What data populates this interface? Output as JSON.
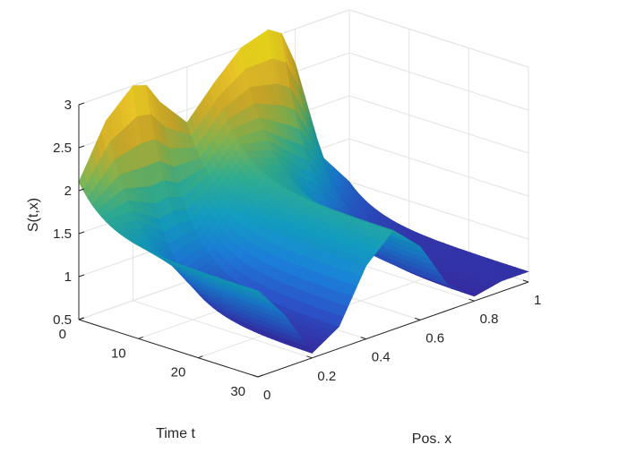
{
  "chart_data": {
    "type": "surface",
    "title": "",
    "xlabel": "Time t",
    "ylabel": "Pos. x",
    "zlabel": "S(t,x)",
    "xlim": [
      0,
      30
    ],
    "ylim": [
      0,
      1
    ],
    "zlim": [
      0.5,
      3
    ],
    "xticks": [
      "0",
      "10",
      "20",
      "30"
    ],
    "yticks": [
      "0",
      "0.2",
      "0.4",
      "0.6",
      "0.8",
      "1"
    ],
    "zticks": [
      "0.5",
      "1",
      "1.5",
      "2",
      "2.5",
      "3"
    ],
    "grid": true,
    "colormap": "parula",
    "colors": [
      "#3e26a8",
      "#2e56d3",
      "#1d85e4",
      "#14a8cf",
      "#34bb9b",
      "#8bc055",
      "#dcb62b",
      "#fbd22a",
      "#f9fb0e"
    ],
    "profile_t0": {
      "x": [
        0,
        0.1,
        0.2,
        0.25,
        0.3,
        0.4,
        0.5,
        0.6,
        0.7,
        0.75,
        0.8,
        0.9,
        1.0
      ],
      "S": [
        2.1,
        2.7,
        3.0,
        2.95,
        2.7,
        2.35,
        2.7,
        3.0,
        3.1,
        3.0,
        2.6,
        1.4,
        1.0
      ]
    },
    "profile_t30": {
      "x": [
        0,
        0.1,
        0.2,
        0.3,
        0.4,
        0.5,
        0.6,
        0.7,
        0.8,
        0.9,
        1.0
      ],
      "S": [
        1.5,
        1.1,
        0.55,
        0.75,
        1.35,
        1.65,
        1.35,
        0.8,
        0.55,
        0.62,
        0.62
      ]
    }
  }
}
